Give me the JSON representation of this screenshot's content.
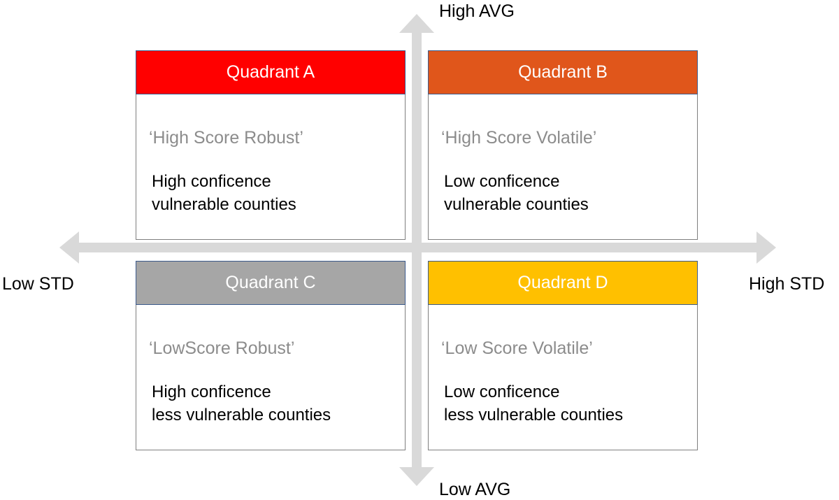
{
  "axes": {
    "top_label": "High AVG",
    "bottom_label": "Low AVG",
    "left_label": "Low STD",
    "right_label": "High STD",
    "arrow_color": "#d9d9d9"
  },
  "quadrants": [
    {
      "title": "Quadrant A",
      "header_color": "#ff0000",
      "subtitle": "‘High Score Robust’",
      "desc_line1": "High conficence",
      "desc_line2": "vulnerable counties"
    },
    {
      "title": "Quadrant B",
      "header_color": "#e0561b",
      "subtitle": "‘High Score Volatile’",
      "desc_line1": "Low conficence",
      "desc_line2": "vulnerable counties"
    },
    {
      "title": "Quadrant C",
      "header_color": "#a6a6a6",
      "subtitle": "‘LowScore Robust’",
      "desc_line1": "High conficence",
      "desc_line2": "less vulnerable counties"
    },
    {
      "title": "Quadrant D",
      "header_color": "#ffc000",
      "subtitle": "‘Low Score Volatile’",
      "desc_line1": "Low conficence",
      "desc_line2": "less vulnerable counties"
    }
  ]
}
